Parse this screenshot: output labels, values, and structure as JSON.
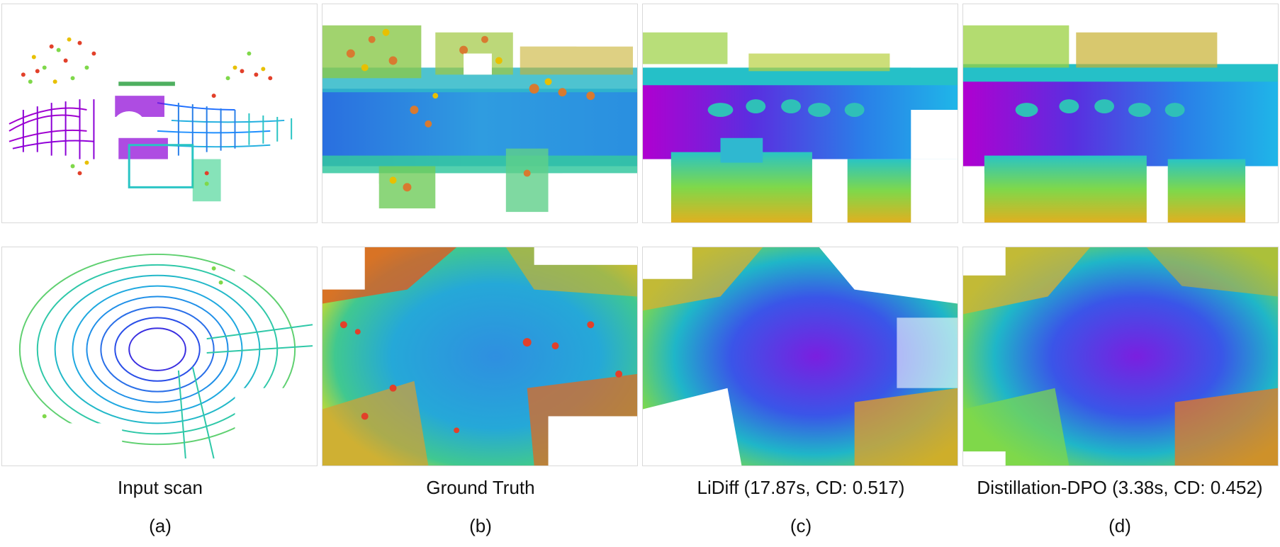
{
  "columns": [
    {
      "caption": "Input scan",
      "label": "(a)"
    },
    {
      "caption": "Ground Truth",
      "label": "(b)"
    },
    {
      "caption": "LiDiff (17.87s, CD: 0.517)",
      "label": "(c)"
    },
    {
      "caption": "Distillation-DPO (3.38s, CD: 0.452)",
      "label": "(d)"
    }
  ],
  "panels": [
    {
      "name": "input-scan-top",
      "kind": "sparse",
      "row": "street"
    },
    {
      "name": "ground-truth-top",
      "kind": "dense-noisy",
      "row": "street"
    },
    {
      "name": "lidiff-top",
      "kind": "dense",
      "row": "street"
    },
    {
      "name": "distillation-dpo-top",
      "kind": "dense",
      "row": "street"
    },
    {
      "name": "input-scan-bottom",
      "kind": "sparse",
      "row": "intersection"
    },
    {
      "name": "ground-truth-bottom",
      "kind": "dense-noisy",
      "row": "intersection"
    },
    {
      "name": "lidiff-bottom",
      "kind": "dense",
      "row": "intersection"
    },
    {
      "name": "distillation-dpo-bottom",
      "kind": "dense",
      "row": "intersection"
    }
  ],
  "colors": {
    "near": "#8b00d6",
    "mid": "#1f8fff",
    "far": "#35d18a",
    "edge": "#e8c000",
    "outer": "#e2402a"
  }
}
